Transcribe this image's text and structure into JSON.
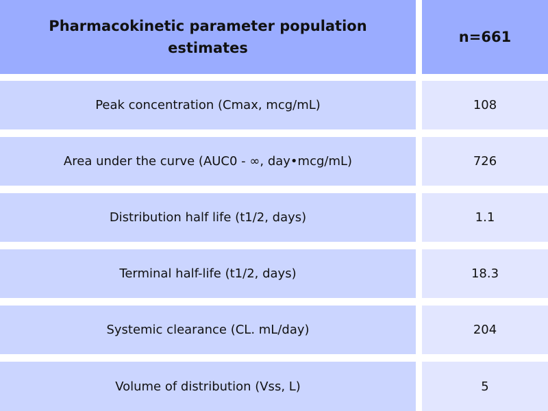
{
  "table": {
    "header": {
      "parameter": "Pharmacokinetic parameter population estimates",
      "value": "n=661"
    },
    "rows": [
      {
        "parameter": "Peak concentration (Cmax, mcg/mL)",
        "value": "108"
      },
      {
        "parameter": "Area under the curve (AUC0 - ∞, day•mcg/mL)",
        "value": "726"
      },
      {
        "parameter": "Distribution half life (t1/2, days)",
        "value": "1.1"
      },
      {
        "parameter": "Terminal half-life (t1/2, days)",
        "value": "18.3"
      },
      {
        "parameter": "Systemic clearance (CL. mL/day)",
        "value": "204"
      },
      {
        "parameter": "Volume of distribution (Vss, L)",
        "value": "5"
      }
    ]
  },
  "colors": {
    "header_bg": "#9aacff",
    "param_cell_bg": "#cbd5ff",
    "value_cell_bg": "#e2e6ff",
    "page_bg": "#ffffff"
  }
}
